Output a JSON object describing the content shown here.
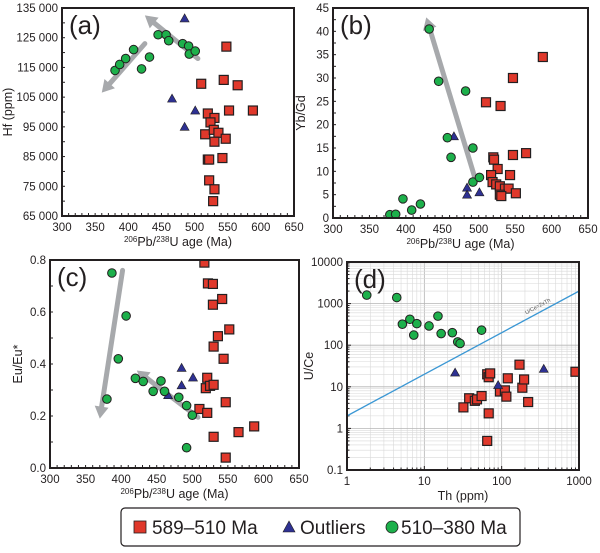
{
  "colors": {
    "square_fill": "#e0382b",
    "triangle_fill": "#2e3192",
    "circle_fill": "#1db04b",
    "arrow": "#a7a9ac",
    "ref_line": "#3a97d4",
    "frame": "#231f20"
  },
  "legend": {
    "position": "bottom-center",
    "items": [
      {
        "label": "589–510 Ma",
        "marker": "square"
      },
      {
        "label": "Outliers",
        "marker": "triangle"
      },
      {
        "label": "510–380 Ma",
        "marker": "circle"
      }
    ]
  },
  "chart_data": [
    {
      "id": "a",
      "panel_label": "(a)",
      "type": "scatter",
      "xlabel_parts": [
        "206",
        "Pb/",
        "238",
        "U age (Ma)"
      ],
      "ylabel": "Hf (ppm)",
      "xlim": [
        300,
        650
      ],
      "ylim": [
        65000,
        135000
      ],
      "xticks": [
        300,
        350,
        400,
        450,
        500,
        550,
        600,
        650
      ],
      "yticks": [
        65000,
        75000,
        85000,
        95000,
        105000,
        115000,
        125000,
        135000
      ],
      "ytick_labels": [
        "65 000",
        "75 000",
        "85 000",
        "95 000",
        "105 000",
        "115 000",
        "125 000",
        "135 000"
      ],
      "xscale": "linear",
      "yscale": "linear",
      "series": [
        {
          "name": "589–510 Ma",
          "marker": "square",
          "points": [
            [
              548,
              122000
            ],
            [
              510,
              109500
            ],
            [
              544,
              110800
            ],
            [
              565,
              109000
            ],
            [
              552,
              100500
            ],
            [
              588,
              100500
            ],
            [
              520,
              99500
            ],
            [
              530,
              98000
            ],
            [
              524,
              96500
            ],
            [
              516,
              92500
            ],
            [
              529,
              94000
            ],
            [
              536,
              93000
            ],
            [
              547,
              91000
            ],
            [
              530,
              90000
            ],
            [
              520,
              84000
            ],
            [
              522,
              84000
            ],
            [
              542,
              84500
            ],
            [
              522,
              77000
            ],
            [
              530,
              74000
            ],
            [
              528,
              70000
            ]
          ]
        },
        {
          "name": "Outliers",
          "marker": "triangle",
          "points": [
            [
              485,
              131500
            ],
            [
              466,
              104500
            ],
            [
              501,
              100500
            ],
            [
              485,
              95000
            ]
          ]
        },
        {
          "name": "510–380 Ma",
          "marker": "circle",
          "points": [
            [
              380,
              114000
            ],
            [
              387,
              116000
            ],
            [
              396,
              118000
            ],
            [
              408,
              121000
            ],
            [
              420,
              114500
            ],
            [
              432,
              118500
            ],
            [
              445,
              126000
            ],
            [
              457,
              126000
            ],
            [
              461,
              124000
            ],
            [
              482,
              123000
            ],
            [
              491,
              122200
            ],
            [
              492,
              119500
            ],
            [
              501,
              120500
            ]
          ]
        }
      ],
      "arrows": [
        {
          "from": [
            425,
            123000
          ],
          "to": [
            360,
            106500
          ]
        },
        {
          "from": [
            505,
            118000
          ],
          "to": [
            425,
            132500
          ]
        }
      ]
    },
    {
      "id": "b",
      "panel_label": "(b)",
      "type": "scatter",
      "xlabel_parts": [
        "206",
        "Pb/",
        "238",
        "U age (Ma)"
      ],
      "ylabel": "Yb/Gd",
      "xlim": [
        300,
        650
      ],
      "ylim": [
        0,
        45
      ],
      "xticks": [
        300,
        350,
        400,
        450,
        500,
        550,
        600,
        650
      ],
      "yticks": [
        0,
        5,
        10,
        15,
        20,
        25,
        30,
        35,
        40,
        45
      ],
      "ytick_labels": [
        "0",
        "5",
        "10",
        "15",
        "20",
        "25",
        "30",
        "35",
        "40",
        "45"
      ],
      "xscale": "linear",
      "yscale": "linear",
      "series": [
        {
          "name": "589–510 Ma",
          "marker": "square",
          "points": [
            [
              588,
              34.5
            ],
            [
              547,
              30
            ],
            [
              510,
              24.8
            ],
            [
              530,
              24
            ],
            [
              565,
              13.9
            ],
            [
              547,
              13.5
            ],
            [
              520,
              13
            ],
            [
              521,
              12.5
            ],
            [
              526,
              10.5
            ],
            [
              517,
              9.2
            ],
            [
              543,
              9.2
            ],
            [
              519,
              7.7
            ],
            [
              524,
              7.2
            ],
            [
              529,
              6.8
            ],
            [
              536,
              6.3
            ],
            [
              541,
              6.3
            ],
            [
              551,
              5.3
            ],
            [
              529,
              5
            ],
            [
              531,
              4.7
            ]
          ]
        },
        {
          "name": "Outliers",
          "marker": "triangle",
          "points": [
            [
              466,
              17.5
            ],
            [
              484,
              6.5
            ],
            [
              484,
              5
            ],
            [
              501,
              5.5
            ]
          ]
        },
        {
          "name": "510–380 Ma",
          "marker": "circle",
          "points": [
            [
              378,
              0.7
            ],
            [
              386,
              0.8
            ],
            [
              396,
              4.1
            ],
            [
              408,
              1.7
            ],
            [
              420,
              3
            ],
            [
              432,
              40.5
            ],
            [
              445,
              29.3
            ],
            [
              457,
              17.2
            ],
            [
              462,
              13
            ],
            [
              482,
              27.2
            ],
            [
              492,
              15
            ],
            [
              492,
              7.7
            ],
            [
              501,
              8.7
            ]
          ]
        }
      ],
      "arrows": [
        {
          "from": [
            494,
            9
          ],
          "to": [
            428,
            43
          ]
        }
      ]
    },
    {
      "id": "c",
      "panel_label": "(c)",
      "type": "scatter",
      "xlabel_parts": [
        "206",
        "Pb/",
        "238",
        "U age (Ma)"
      ],
      "ylabel": "Eu/Eu*",
      "xlim": [
        300,
        650
      ],
      "ylim": [
        0,
        0.8
      ],
      "xticks": [
        300,
        350,
        400,
        450,
        500,
        550,
        600,
        650
      ],
      "yticks": [
        0,
        0.2,
        0.4,
        0.6,
        0.8
      ],
      "ytick_labels": [
        "0.0",
        "0.2",
        "0.4",
        "0.6",
        "0.8"
      ],
      "xscale": "linear",
      "yscale": "linear",
      "series": [
        {
          "name": "589–510 Ma",
          "marker": "square",
          "points": [
            [
              517,
              0.79
            ],
            [
              522,
              0.71
            ],
            [
              529,
              0.708
            ],
            [
              542,
              0.65
            ],
            [
              529,
              0.628
            ],
            [
              552,
              0.533
            ],
            [
              536,
              0.507
            ],
            [
              530,
              0.467
            ],
            [
              544,
              0.42
            ],
            [
              521,
              0.347
            ],
            [
              519,
              0.307
            ],
            [
              525,
              0.316
            ],
            [
              530,
              0.32
            ],
            [
              547,
              0.253
            ],
            [
              510,
              0.227
            ],
            [
              521,
              0.212
            ],
            [
              587,
              0.16
            ],
            [
              565,
              0.138
            ],
            [
              530,
              0.12
            ],
            [
              547,
              0.04
            ]
          ]
        },
        {
          "name": "Outliers",
          "marker": "triangle",
          "points": [
            [
              485,
              0.385
            ],
            [
              501,
              0.348
            ],
            [
              485,
              0.318
            ],
            [
              466,
              0.28
            ]
          ]
        },
        {
          "name": "510–380 Ma",
          "marker": "circle",
          "points": [
            [
              387,
              0.75
            ],
            [
              407,
              0.585
            ],
            [
              396,
              0.42
            ],
            [
              380,
              0.265
            ],
            [
              420,
              0.345
            ],
            [
              431,
              0.333
            ],
            [
              445,
              0.295
            ],
            [
              456,
              0.335
            ],
            [
              461,
              0.295
            ],
            [
              481,
              0.272
            ],
            [
              492,
              0.24
            ],
            [
              500,
              0.203
            ],
            [
              492,
              0.078
            ]
          ]
        }
      ],
      "arrows": [
        {
          "from": [
            402,
            0.76
          ],
          "to": [
            370,
            0.19
          ]
        },
        {
          "from": [
            508,
            0.195
          ],
          "to": [
            422,
            0.375
          ]
        }
      ]
    },
    {
      "id": "d",
      "panel_label": "(d)",
      "type": "scatter",
      "xlabel": "Th (ppm)",
      "ylabel": "U/Ce",
      "xlim": [
        1,
        1000
      ],
      "ylim": [
        0.1,
        10000
      ],
      "xticks": [
        1,
        10,
        100,
        1000
      ],
      "yticks": [
        0.1,
        1,
        10,
        100,
        1000,
        10000
      ],
      "ytick_labels": [
        "0.1",
        "1",
        "10",
        "100",
        "1000",
        "10000"
      ],
      "xscale": "log",
      "yscale": "log",
      "grid": true,
      "reference_line": {
        "label": "U/Ce=2xTh",
        "equation": "y = 2x",
        "from": [
          1,
          2
        ],
        "to": [
          1000,
          2000
        ]
      },
      "series": [
        {
          "name": "589–510 Ma",
          "marker": "square",
          "points": [
            [
              65,
              20
            ],
            [
              68,
              17
            ],
            [
              71,
              21
            ],
            [
              32,
              3.2
            ],
            [
              38,
              5.3
            ],
            [
              45,
              4.6
            ],
            [
              48,
              5
            ],
            [
              55,
              6
            ],
            [
              68,
              2.3
            ],
            [
              65,
              0.5
            ],
            [
              95,
              7.7
            ],
            [
              110,
              8.2
            ],
            [
              115,
              5.8
            ],
            [
              120,
              16
            ],
            [
              170,
              34
            ],
            [
              185,
              9.5
            ],
            [
              195,
              15
            ],
            [
              220,
              4.3
            ],
            [
              900,
              23
            ]
          ]
        },
        {
          "name": "Outliers",
          "marker": "triangle",
          "points": [
            [
              25,
              22
            ],
            [
              90,
              11
            ],
            [
              350,
              27
            ]
          ]
        },
        {
          "name": "510–380 Ma",
          "marker": "circle",
          "points": [
            [
              1.8,
              1600
            ],
            [
              4.4,
              1400
            ],
            [
              5.2,
              320
            ],
            [
              6.5,
              420
            ],
            [
              7.3,
              175
            ],
            [
              8,
              330
            ],
            [
              11.5,
              290
            ],
            [
              15,
              500
            ],
            [
              16.5,
              190
            ],
            [
              23,
              200
            ],
            [
              27,
              120
            ],
            [
              29,
              110
            ],
            [
              55,
              230
            ]
          ]
        }
      ]
    }
  ]
}
